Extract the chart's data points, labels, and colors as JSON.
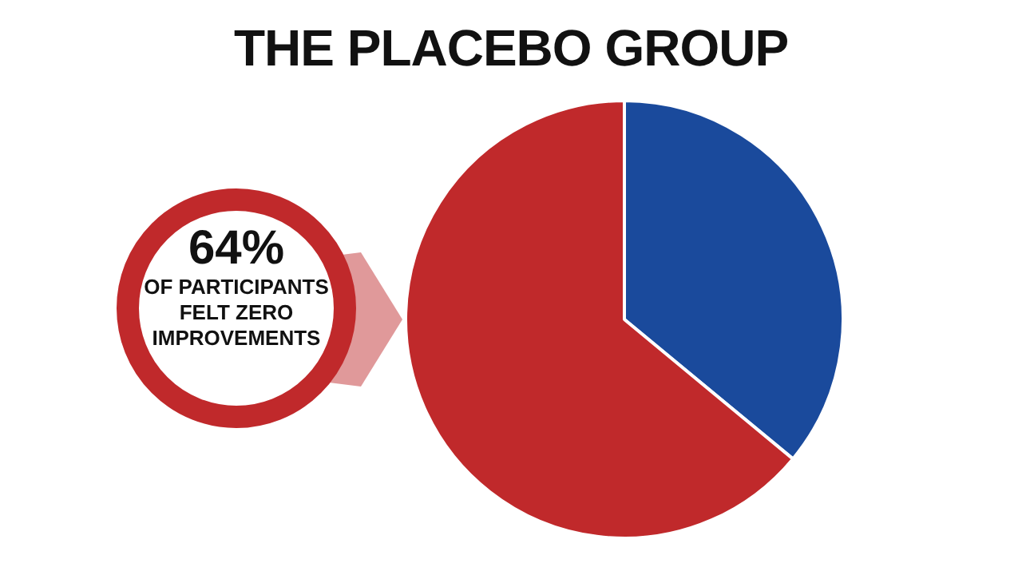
{
  "chart_data": {
    "type": "pie",
    "title": "THE PLACEBO GROUP",
    "categories": [
      null,
      null
    ],
    "values": [
      36,
      64
    ],
    "colors": [
      "#1a4a9c",
      "#c0292b"
    ],
    "annotations": [
      "64%",
      "OF PARTICIPANTS FELT ZERO IMPROVEMENTS"
    ],
    "legend": false
  }
}
